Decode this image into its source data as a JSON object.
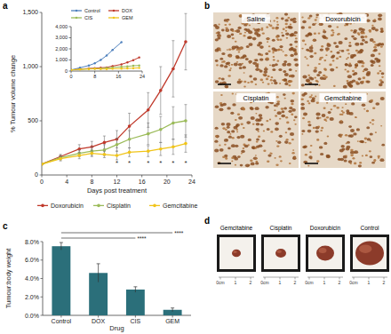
{
  "panel_labels": [
    "a",
    "b",
    "c",
    "d"
  ],
  "chart_data": [
    {
      "type": "line",
      "x_label": "Days post treatment",
      "y_label": "% Tumour volume change",
      "xlim": [
        0,
        24
      ],
      "xticks": [
        0,
        4,
        8,
        12,
        16,
        20,
        24
      ],
      "ylim": [
        0,
        1500
      ],
      "yticks": [
        0,
        500,
        {
          "value": 1000,
          "label": "1,000"
        },
        {
          "value": 1500,
          "label": "1,500"
        }
      ],
      "legend": "bottom",
      "x": [
        0,
        3,
        6,
        8,
        10,
        12,
        14,
        17,
        19,
        21,
        23
      ],
      "series": [
        {
          "name": "Doxorubicin",
          "color": "#c0392b",
          "marker": "circle",
          "values": [
            100,
            170,
            240,
            260,
            300,
            330,
            450,
            600,
            780,
            980,
            1230
          ],
          "errors": [
            0,
            20,
            40,
            50,
            60,
            80,
            120,
            160,
            220,
            260,
            260
          ]
        },
        {
          "name": "Cisplatin",
          "color": "#9bbb59",
          "marker": "circle",
          "values": [
            100,
            160,
            200,
            220,
            230,
            280,
            330,
            380,
            420,
            480,
            500
          ],
          "errors": [
            0,
            20,
            30,
            40,
            50,
            60,
            80,
            100,
            120,
            150,
            150
          ]
        },
        {
          "name": "Gemcitabine",
          "color": "#f0c419",
          "marker": "circle",
          "values": [
            100,
            150,
            180,
            200,
            190,
            180,
            210,
            220,
            240,
            260,
            290
          ],
          "errors": [
            0,
            20,
            30,
            30,
            30,
            40,
            40,
            50,
            60,
            70,
            80
          ]
        }
      ],
      "annotations": [
        {
          "x": 12,
          "y": 90,
          "text": "*"
        },
        {
          "x": 14,
          "y": 90,
          "text": "*"
        },
        {
          "x": 17,
          "y": 90,
          "text": "*"
        },
        {
          "x": 19,
          "y": 90,
          "text": "*"
        },
        {
          "x": 21,
          "y": 90,
          "text": "*"
        },
        {
          "x": 23,
          "y": 90,
          "text": "*"
        }
      ]
    },
    {
      "type": "line",
      "xlim": [
        0,
        24
      ],
      "xticks": [
        0,
        8,
        16,
        24
      ],
      "ylim": [
        0,
        4000
      ],
      "yticks": [
        0,
        {
          "value": 1000,
          "label": "1,000"
        },
        {
          "value": 2000,
          "label": "2,000"
        },
        {
          "value": 3000,
          "label": "3,000"
        },
        {
          "value": 4000,
          "label": "4,000"
        }
      ],
      "legend": "upper left",
      "x": [
        0,
        3,
        6,
        8,
        10,
        12,
        14,
        17,
        19,
        21,
        23
      ],
      "series": [
        {
          "name": "Control",
          "color": "#4f81bd",
          "marker": "circle",
          "values": [
            100,
            300,
            500,
            700,
            1000,
            1400,
            1900,
            2600,
            null,
            null,
            null
          ]
        },
        {
          "name": "DOX",
          "color": "#c0392b",
          "marker": "circle",
          "values": [
            100,
            170,
            240,
            260,
            300,
            330,
            450,
            600,
            780,
            980,
            1230
          ]
        },
        {
          "name": "CIS",
          "color": "#9bbb59",
          "marker": "circle",
          "values": [
            100,
            160,
            200,
            220,
            230,
            280,
            330,
            380,
            420,
            480,
            500
          ]
        },
        {
          "name": "GEM",
          "color": "#f0c419",
          "marker": "circle",
          "values": [
            100,
            150,
            180,
            200,
            190,
            180,
            210,
            220,
            240,
            260,
            290
          ]
        }
      ]
    },
    {
      "type": "bar",
      "x_label": "Drug",
      "y_label": "Tumour:body weight",
      "categories": [
        "Control",
        "DOX",
        "CIS",
        "GEM"
      ],
      "values": [
        7.5,
        4.6,
        2.8,
        0.6
      ],
      "errors": [
        0.4,
        1.0,
        0.3,
        0.2
      ],
      "color": "#2b6f7a",
      "ylim": [
        0,
        8
      ],
      "yticks": [
        {
          "value": 0,
          "label": "0.0%"
        },
        {
          "value": 2,
          "label": "2.0%"
        },
        {
          "value": 4,
          "label": "4.0%"
        },
        {
          "value": 6,
          "label": "6.0%"
        },
        {
          "value": 8,
          "label": "8.0%"
        }
      ],
      "annotations": [
        {
          "from": "Control",
          "to": "GEM",
          "text": "****"
        },
        {
          "from": "Control",
          "to": "CIS",
          "text": "****"
        }
      ]
    }
  ],
  "micrographs": {
    "labels": [
      "Saline",
      "Doxorubicin",
      "Cisplatin",
      "Gemcitabine"
    ]
  },
  "photos": {
    "labels": [
      "Gemcitabine",
      "Cisplatin",
      "Doxorubicin",
      "Control"
    ],
    "ruler": [
      "0cm",
      "1",
      "2"
    ]
  }
}
